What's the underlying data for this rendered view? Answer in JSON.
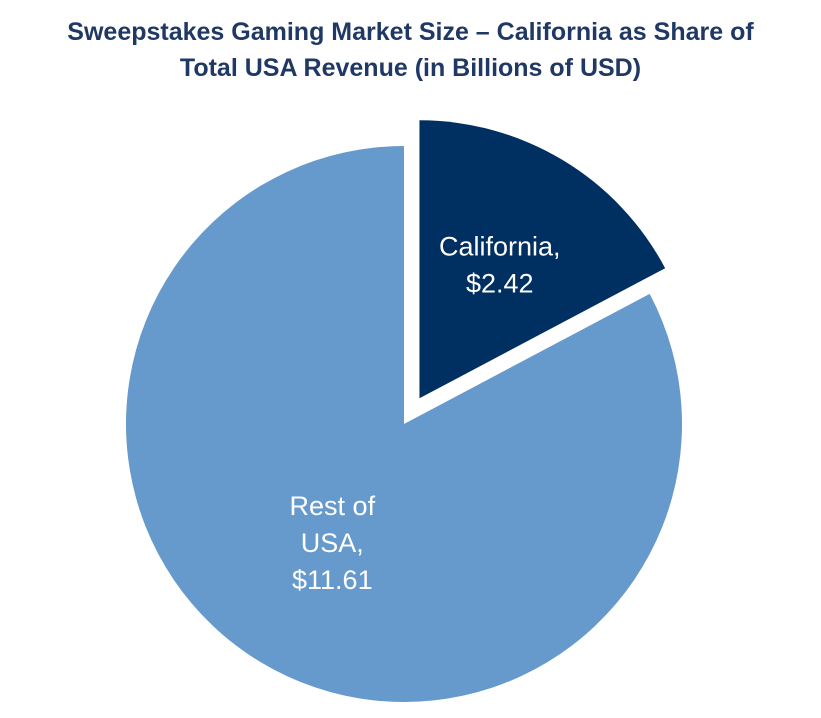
{
  "chart_data": {
    "type": "pie",
    "title_line1": "Sweepstakes Gaming Market Size – California as Share of",
    "title_line2": "Total USA Revenue (in Billions of USD)",
    "slices": [
      {
        "name": "California",
        "value": 2.42,
        "label_lines": [
          "California,",
          "$2.42"
        ],
        "color": "#002f62",
        "exploded": true
      },
      {
        "name": "Rest of USA",
        "value": 11.61,
        "label_lines": [
          "Rest of",
          "USA,",
          "$11.61"
        ],
        "color": "#6699cc",
        "exploded": false
      }
    ],
    "start_angle_deg": 0,
    "direction": "clockwise",
    "legend": "none"
  }
}
